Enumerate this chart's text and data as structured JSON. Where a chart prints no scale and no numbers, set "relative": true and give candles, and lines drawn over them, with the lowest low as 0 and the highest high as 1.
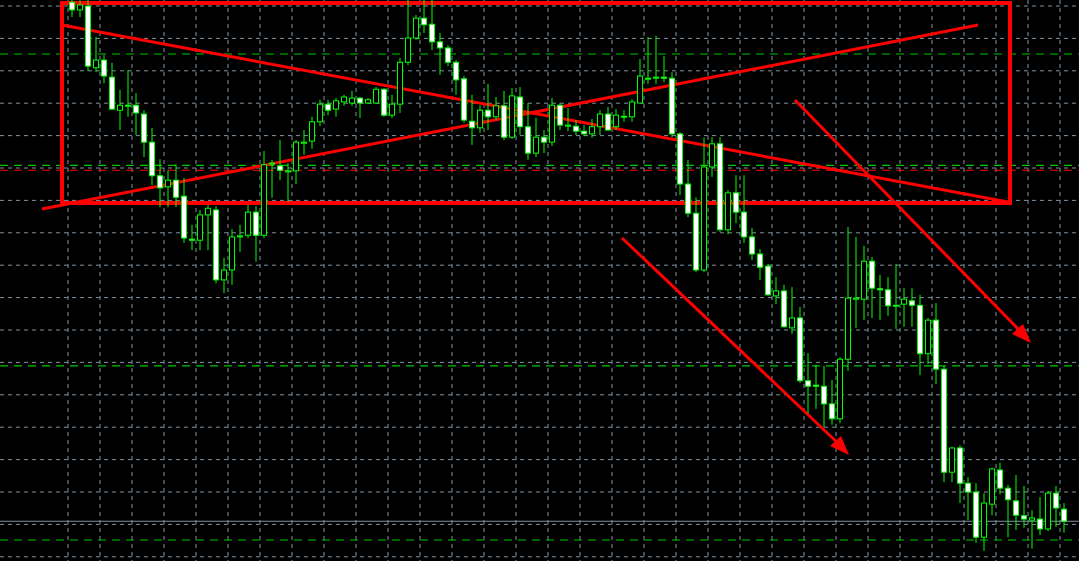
{
  "chart_data": {
    "type": "candlestick",
    "relative": true,
    "color": "#00ff00",
    "grid": true,
    "categories": [
      null,
      null,
      null,
      null,
      null,
      null,
      null,
      null,
      null,
      null,
      null,
      null,
      null,
      null,
      null,
      null,
      null,
      null,
      null,
      null,
      null,
      null,
      null,
      null,
      null,
      null,
      null,
      null,
      null,
      null,
      null,
      null,
      null,
      null,
      null,
      null,
      null,
      null,
      null,
      null,
      null,
      null,
      null,
      null,
      null,
      null,
      null,
      null,
      null,
      null,
      null,
      null,
      null,
      null,
      null,
      null,
      null,
      null,
      null,
      null,
      null,
      null,
      null,
      null,
      null,
      null,
      null,
      null,
      null,
      null,
      null,
      null,
      null,
      null,
      null,
      null,
      null,
      null,
      null,
      null,
      null,
      null,
      null,
      null,
      null,
      null,
      null,
      null,
      null,
      null,
      null,
      null,
      null,
      null,
      null,
      null,
      null,
      null,
      null,
      null,
      null,
      null,
      null,
      null,
      null,
      null,
      null,
      null,
      null,
      null,
      null,
      null,
      null,
      null,
      null,
      null,
      null,
      null,
      null,
      null,
      null,
      null,
      null,
      null,
      null
    ],
    "ohlc": [
      [
        0.996,
        1,
        0.969,
        0.982
      ],
      [
        0.982,
        1,
        0.969,
        0.991
      ],
      [
        0.989,
        1,
        0.871,
        0.88
      ],
      [
        0.877,
        0.933,
        0.869,
        0.891
      ],
      [
        0.891,
        0.9,
        0.849,
        0.862
      ],
      [
        0.86,
        0.886,
        0.8,
        0.802
      ],
      [
        0.8,
        0.837,
        0.764,
        0.809
      ],
      [
        0.808,
        0.873,
        0.788,
        0.809
      ],
      [
        0.809,
        0.831,
        0.755,
        0.795
      ],
      [
        0.793,
        0.8,
        0.715,
        0.742
      ],
      [
        0.742,
        0.768,
        0.664,
        0.681
      ],
      [
        0.681,
        0.711,
        0.624,
        0.659
      ],
      [
        0.661,
        0.691,
        0.624,
        0.673
      ],
      [
        0.673,
        0.702,
        0.624,
        0.642
      ],
      [
        0.644,
        0.677,
        0.559,
        0.568
      ],
      [
        0.566,
        0.592,
        0.546,
        0.564
      ],
      [
        0.564,
        0.619,
        0.546,
        0.61
      ],
      [
        0.61,
        0.628,
        0.546,
        0.622
      ],
      [
        0.619,
        0.626,
        0.486,
        0.492
      ],
      [
        0.492,
        0.532,
        0.468,
        0.51
      ],
      [
        0.51,
        0.584,
        0.483,
        0.57
      ],
      [
        0.57,
        0.592,
        0.543,
        0.572
      ],
      [
        0.573,
        0.628,
        0.568,
        0.615
      ],
      [
        0.615,
        0.626,
        0.525,
        0.573
      ],
      [
        0.573,
        0.726,
        0.568,
        0.701
      ],
      [
        0.702,
        0.71,
        0.641,
        0.704
      ],
      [
        0.699,
        0.746,
        0.673,
        0.691
      ],
      [
        0.688,
        0.704,
        0.633,
        0.69
      ],
      [
        0.69,
        0.746,
        0.666,
        0.742
      ],
      [
        0.74,
        0.764,
        0.719,
        0.742
      ],
      [
        0.744,
        0.788,
        0.73,
        0.779
      ],
      [
        0.779,
        0.819,
        0.771,
        0.811
      ],
      [
        0.811,
        0.819,
        0.791,
        0.8
      ],
      [
        0.802,
        0.822,
        0.788,
        0.817
      ],
      [
        0.815,
        0.828,
        0.808,
        0.824
      ],
      [
        0.813,
        0.835,
        0.808,
        0.822
      ],
      [
        0.822,
        0.824,
        0.786,
        0.813
      ],
      [
        0.813,
        0.822,
        0.811,
        0.819
      ],
      [
        0.813,
        0.842,
        0.811,
        0.838
      ],
      [
        0.838,
        0.84,
        0.788,
        0.791
      ],
      [
        0.791,
        0.828,
        0.786,
        0.811
      ],
      [
        0.811,
        0.895,
        0.795,
        0.887
      ],
      [
        0.887,
        1,
        0.882,
        0.931
      ],
      [
        0.931,
        0.973,
        0.927,
        0.967
      ],
      [
        0.967,
        1,
        0.94,
        0.955
      ],
      [
        0.956,
        1,
        0.909,
        0.924
      ],
      [
        0.924,
        0.94,
        0.864,
        0.913
      ],
      [
        0.913,
        0.918,
        0.88,
        0.887
      ],
      [
        0.887,
        0.891,
        0.828,
        0.855
      ],
      [
        0.857,
        0.862,
        0.777,
        0.782
      ],
      [
        0.78,
        0.828,
        0.737,
        0.768
      ],
      [
        0.768,
        0.809,
        0.759,
        0.8
      ],
      [
        0.8,
        0.848,
        0.764,
        0.788
      ],
      [
        0.788,
        0.824,
        0.782,
        0.808
      ],
      [
        0.808,
        0.835,
        0.746,
        0.751
      ],
      [
        0.751,
        0.84,
        0.748,
        0.826
      ],
      [
        0.824,
        0.842,
        0.755,
        0.77
      ],
      [
        0.77,
        0.813,
        0.71,
        0.722
      ],
      [
        0.722,
        0.786,
        0.715,
        0.751
      ],
      [
        0.751,
        0.764,
        0.722,
        0.742
      ],
      [
        0.742,
        0.822,
        0.735,
        0.809
      ],
      [
        0.809,
        0.813,
        0.764,
        0.773
      ],
      [
        0.771,
        0.804,
        0.762,
        0.773
      ],
      [
        0.771,
        0.782,
        0.755,
        0.762
      ],
      [
        0.762,
        0.773,
        0.753,
        0.757
      ],
      [
        0.757,
        0.784,
        0.75,
        0.77
      ],
      [
        0.77,
        0.8,
        0.755,
        0.793
      ],
      [
        0.793,
        0.806,
        0.762,
        0.764
      ],
      [
        0.77,
        0.802,
        0.764,
        0.791
      ],
      [
        0.788,
        0.8,
        0.779,
        0.789
      ],
      [
        0.788,
        0.82,
        0.779,
        0.815
      ],
      [
        0.813,
        0.893,
        0.813,
        0.862
      ],
      [
        0.857,
        0.933,
        0.848,
        0.858
      ],
      [
        0.858,
        0.935,
        0.848,
        0.86
      ],
      [
        0.86,
        0.898,
        0.851,
        0.858
      ],
      [
        0.858,
        0.869,
        0.751,
        0.757
      ],
      [
        0.757,
        0.76,
        0.646,
        0.666
      ],
      [
        0.666,
        0.71,
        0.606,
        0.613
      ],
      [
        0.613,
        0.642,
        0.506,
        0.51
      ],
      [
        0.51,
        0.75,
        0.506,
        0.697
      ],
      [
        0.697,
        0.751,
        0.679,
        0.739
      ],
      [
        0.739,
        0.751,
        0.579,
        0.583
      ],
      [
        0.583,
        0.655,
        0.575,
        0.65
      ],
      [
        0.65,
        0.682,
        0.595,
        0.615
      ],
      [
        0.615,
        0.682,
        0.559,
        0.57
      ],
      [
        0.57,
        0.586,
        0.528,
        0.539
      ],
      [
        0.539,
        0.548,
        0.492,
        0.515
      ],
      [
        0.517,
        0.521,
        0.463,
        0.465
      ],
      [
        0.463,
        0.497,
        0.448,
        0.472
      ],
      [
        0.472,
        0.483,
        0.405,
        0.407
      ],
      [
        0.405,
        0.479,
        0.394,
        0.423
      ],
      [
        0.423,
        0.443,
        0.305,
        0.309
      ],
      [
        0.309,
        0.359,
        0.25,
        0.299
      ],
      [
        0.301,
        0.338,
        0.258,
        0.299
      ],
      [
        0.299,
        0.336,
        0.225,
        0.267
      ],
      [
        0.267,
        0.31,
        0.229,
        0.24
      ],
      [
        0.24,
        0.352,
        0.232,
        0.348
      ],
      [
        0.348,
        0.588,
        0.327,
        0.459
      ],
      [
        0.457,
        0.57,
        0.405,
        0.459
      ],
      [
        0.457,
        0.554,
        0.419,
        0.526
      ],
      [
        0.526,
        0.534,
        0.423,
        0.477
      ],
      [
        0.476,
        0.501,
        0.419,
        0.474
      ],
      [
        0.474,
        0.497,
        0.427,
        0.445
      ],
      [
        0.445,
        0.521,
        0.403,
        0.446
      ],
      [
        0.448,
        0.477,
        0.407,
        0.457
      ],
      [
        0.454,
        0.477,
        0.407,
        0.446
      ],
      [
        0.446,
        0.465,
        0.319,
        0.358
      ],
      [
        0.358,
        0.423,
        0.339,
        0.419
      ],
      [
        0.419,
        0.45,
        0.303,
        0.33
      ],
      [
        0.33,
        0.336,
        0.125,
        0.143
      ],
      [
        0.143,
        0.189,
        0.125,
        0.187
      ],
      [
        0.187,
        0.192,
        0.087,
        0.123
      ],
      [
        0.123,
        0.134,
        0.056,
        0.107
      ],
      [
        0.107,
        0.123,
        0.015,
        0.025
      ],
      [
        0.025,
        0.105,
        0,
        0.087
      ],
      [
        0.085,
        0.151,
        0.065,
        0.149
      ],
      [
        0.147,
        0.16,
        0.103,
        0.114
      ],
      [
        0.114,
        0.12,
        0.025,
        0.093
      ],
      [
        0.091,
        0.138,
        0.038,
        0.065
      ],
      [
        0.064,
        0.118,
        0.042,
        0.058
      ],
      [
        0.056,
        0.074,
        0.004,
        0.06
      ],
      [
        0.058,
        0.098,
        0.029,
        0.04
      ],
      [
        0.04,
        0.109,
        0.036,
        0.105
      ],
      [
        0.105,
        0.118,
        0.044,
        0.078
      ],
      [
        0.076,
        0.087,
        0.033,
        0.054
      ]
    ],
    "ref_lines": [
      {
        "axis": "y",
        "value": 0.902,
        "color": "#00c800",
        "line_style": "dashed"
      },
      {
        "axis": "y",
        "value": 0.7,
        "color": "#00c800",
        "line_style": "dashed"
      },
      {
        "axis": "y",
        "value": 0.691,
        "color": "#ff0000",
        "line_style": "dashed"
      },
      {
        "axis": "y",
        "value": 0.336,
        "color": "#00c800",
        "line_style": "dashed"
      },
      {
        "axis": "y",
        "value": 0.054,
        "color": "#8090a0",
        "line_style": "solid"
      },
      {
        "axis": "y",
        "value": 0.02,
        "color": "#00c800",
        "line_style": "dashed"
      }
    ]
  }
}
